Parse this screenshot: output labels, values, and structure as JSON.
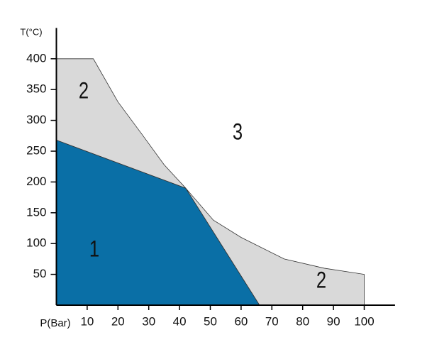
{
  "chart_data": {
    "type": "region",
    "xlabel": "P(Bar)",
    "ylabel": "T(°C)",
    "xlim": [
      0,
      110
    ],
    "ylim": [
      0,
      450
    ],
    "xticks": [
      10,
      20,
      30,
      40,
      50,
      60,
      70,
      80,
      90,
      100
    ],
    "yticks": [
      50,
      100,
      150,
      200,
      250,
      300,
      350,
      400
    ],
    "regions": [
      {
        "name": "1",
        "color": "#0a6fa6",
        "x": [
          0,
          0,
          42,
          66
        ],
        "y": [
          0,
          268,
          190,
          0
        ]
      },
      {
        "name": "2",
        "color": "#d9d9d9",
        "x": [
          0,
          0,
          12,
          20,
          28,
          35,
          42
        ],
        "y": [
          268,
          400,
          400,
          330,
          276,
          228,
          190
        ]
      },
      {
        "name": "2",
        "color": "#d9d9d9",
        "x": [
          42,
          51,
          60,
          74,
          87,
          100,
          100,
          66
        ],
        "y": [
          190,
          138,
          110,
          75,
          60,
          50,
          0,
          0
        ]
      }
    ],
    "annotations": [
      "2",
      "3",
      "1",
      "2"
    ]
  }
}
